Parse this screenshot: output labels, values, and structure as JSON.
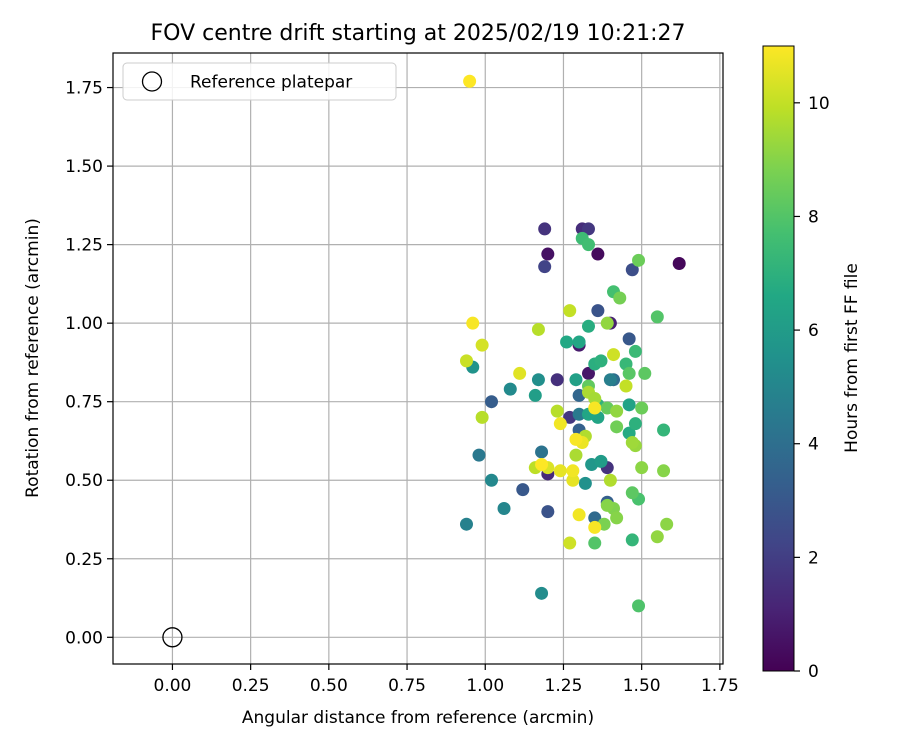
{
  "chart_data": {
    "type": "scatter",
    "title": "FOV centre drift starting at 2025/02/19 10:21:27",
    "xlabel": "Angular distance from reference (arcmin)",
    "ylabel": "Rotation from reference (arcmin)",
    "xlim": [
      -0.19,
      1.76
    ],
    "ylim": [
      -0.085,
      1.86
    ],
    "x_ticks": [
      "0.00",
      "0.25",
      "0.50",
      "0.75",
      "1.00",
      "1.25",
      "1.50",
      "1.75"
    ],
    "y_ticks": [
      "0.00",
      "0.25",
      "0.50",
      "0.75",
      "1.00",
      "1.25",
      "1.50",
      "1.75"
    ],
    "grid": true,
    "legend": {
      "placement": "top-left",
      "entries": [
        "Reference platepar"
      ]
    },
    "reference_point": {
      "x": 0.0,
      "y": 0.0,
      "marker": "hollow-circle",
      "color": "#000000"
    },
    "colorbar": {
      "label": "Hours from first FF file",
      "range": [
        0,
        11
      ],
      "ticks": [
        "0",
        "2",
        "4",
        "6",
        "8",
        "10"
      ],
      "colormap": "viridis"
    },
    "series": [
      {
        "points": [
          {
            "x": 1.62,
            "y": 1.19,
            "c": 0.2
          },
          {
            "x": 1.36,
            "y": 1.22,
            "c": 0.3
          },
          {
            "x": 1.2,
            "y": 1.22,
            "c": 0.5
          },
          {
            "x": 1.3,
            "y": 0.93,
            "c": 0.8
          },
          {
            "x": 1.33,
            "y": 0.84,
            "c": 0.7
          },
          {
            "x": 1.4,
            "y": 1.0,
            "c": 1.0
          },
          {
            "x": 1.19,
            "y": 1.3,
            "c": 1.6
          },
          {
            "x": 1.31,
            "y": 1.3,
            "c": 1.4
          },
          {
            "x": 1.33,
            "y": 1.3,
            "c": 1.8
          },
          {
            "x": 1.2,
            "y": 0.52,
            "c": 1.3
          },
          {
            "x": 1.23,
            "y": 0.82,
            "c": 1.5
          },
          {
            "x": 1.27,
            "y": 0.7,
            "c": 1.8
          },
          {
            "x": 1.39,
            "y": 0.54,
            "c": 1.6
          },
          {
            "x": 1.19,
            "y": 1.18,
            "c": 2.2
          },
          {
            "x": 1.47,
            "y": 1.17,
            "c": 2.6
          },
          {
            "x": 1.36,
            "y": 1.04,
            "c": 2.8
          },
          {
            "x": 1.46,
            "y": 0.95,
            "c": 3.0
          },
          {
            "x": 1.2,
            "y": 0.4,
            "c": 2.8
          },
          {
            "x": 1.12,
            "y": 0.47,
            "c": 3.0
          },
          {
            "x": 1.02,
            "y": 0.75,
            "c": 3.2
          },
          {
            "x": 1.39,
            "y": 0.43,
            "c": 3.3
          },
          {
            "x": 1.3,
            "y": 0.66,
            "c": 3.4
          },
          {
            "x": 1.3,
            "y": 0.77,
            "c": 3.6
          },
          {
            "x": 1.35,
            "y": 0.38,
            "c": 3.8
          },
          {
            "x": 1.41,
            "y": 0.82,
            "c": 3.9
          },
          {
            "x": 1.18,
            "y": 0.59,
            "c": 4.2
          },
          {
            "x": 0.98,
            "y": 0.58,
            "c": 4.4
          },
          {
            "x": 1.3,
            "y": 0.71,
            "c": 4.5
          },
          {
            "x": 1.4,
            "y": 0.82,
            "c": 4.7
          },
          {
            "x": 0.94,
            "y": 0.36,
            "c": 4.8
          },
          {
            "x": 1.06,
            "y": 0.41,
            "c": 5.0
          },
          {
            "x": 1.02,
            "y": 0.5,
            "c": 5.1
          },
          {
            "x": 1.08,
            "y": 0.79,
            "c": 5.2
          },
          {
            "x": 1.18,
            "y": 0.14,
            "c": 5.3
          },
          {
            "x": 1.17,
            "y": 0.82,
            "c": 5.4
          },
          {
            "x": 1.32,
            "y": 0.49,
            "c": 5.5
          },
          {
            "x": 0.96,
            "y": 0.86,
            "c": 5.6
          },
          {
            "x": 1.34,
            "y": 0.55,
            "c": 5.8
          },
          {
            "x": 1.37,
            "y": 0.56,
            "c": 6.0
          },
          {
            "x": 1.16,
            "y": 0.77,
            "c": 6.1
          },
          {
            "x": 1.29,
            "y": 0.82,
            "c": 6.2
          },
          {
            "x": 1.46,
            "y": 0.74,
            "c": 6.3
          },
          {
            "x": 1.36,
            "y": 0.7,
            "c": 6.4
          },
          {
            "x": 1.33,
            "y": 0.71,
            "c": 6.5
          },
          {
            "x": 1.26,
            "y": 0.94,
            "c": 6.6
          },
          {
            "x": 1.3,
            "y": 0.94,
            "c": 6.5
          },
          {
            "x": 1.33,
            "y": 0.99,
            "c": 6.8
          },
          {
            "x": 1.35,
            "y": 0.87,
            "c": 6.9
          },
          {
            "x": 1.37,
            "y": 0.88,
            "c": 7.0
          },
          {
            "x": 1.46,
            "y": 0.65,
            "c": 6.7
          },
          {
            "x": 1.48,
            "y": 0.68,
            "c": 7.0
          },
          {
            "x": 1.36,
            "y": 0.74,
            "c": 7.1
          },
          {
            "x": 1.47,
            "y": 0.31,
            "c": 7.2
          },
          {
            "x": 1.45,
            "y": 0.87,
            "c": 7.3
          },
          {
            "x": 1.48,
            "y": 0.91,
            "c": 7.4
          },
          {
            "x": 1.57,
            "y": 0.66,
            "c": 7.2
          },
          {
            "x": 1.31,
            "y": 1.27,
            "c": 7.5
          },
          {
            "x": 1.33,
            "y": 1.25,
            "c": 7.6
          },
          {
            "x": 1.41,
            "y": 1.1,
            "c": 7.7
          },
          {
            "x": 1.49,
            "y": 0.44,
            "c": 7.8
          },
          {
            "x": 1.49,
            "y": 0.1,
            "c": 7.9
          },
          {
            "x": 1.35,
            "y": 0.3,
            "c": 8.0
          },
          {
            "x": 1.46,
            "y": 0.84,
            "c": 8.1
          },
          {
            "x": 1.47,
            "y": 0.46,
            "c": 8.2
          },
          {
            "x": 1.33,
            "y": 0.8,
            "c": 8.3
          },
          {
            "x": 1.39,
            "y": 0.73,
            "c": 8.4
          },
          {
            "x": 1.55,
            "y": 1.02,
            "c": 8.0
          },
          {
            "x": 1.51,
            "y": 0.84,
            "c": 8.2
          },
          {
            "x": 1.49,
            "y": 1.2,
            "c": 8.5
          },
          {
            "x": 1.42,
            "y": 0.67,
            "c": 8.6
          },
          {
            "x": 1.5,
            "y": 0.73,
            "c": 8.5
          },
          {
            "x": 1.43,
            "y": 1.08,
            "c": 8.7
          },
          {
            "x": 1.38,
            "y": 0.36,
            "c": 8.8
          },
          {
            "x": 1.41,
            "y": 0.41,
            "c": 8.9
          },
          {
            "x": 1.39,
            "y": 0.42,
            "c": 9.0
          },
          {
            "x": 1.42,
            "y": 0.38,
            "c": 9.0
          },
          {
            "x": 1.57,
            "y": 0.53,
            "c": 9.0
          },
          {
            "x": 1.58,
            "y": 0.36,
            "c": 9.1
          },
          {
            "x": 1.55,
            "y": 0.32,
            "c": 9.2
          },
          {
            "x": 1.5,
            "y": 0.54,
            "c": 9.1
          },
          {
            "x": 1.48,
            "y": 0.61,
            "c": 9.3
          },
          {
            "x": 1.47,
            "y": 0.62,
            "c": 9.4
          },
          {
            "x": 1.42,
            "y": 0.72,
            "c": 9.2
          },
          {
            "x": 1.39,
            "y": 1.0,
            "c": 9.2
          },
          {
            "x": 1.33,
            "y": 0.78,
            "c": 9.6
          },
          {
            "x": 1.35,
            "y": 0.76,
            "c": 9.5
          },
          {
            "x": 1.29,
            "y": 0.58,
            "c": 9.6
          },
          {
            "x": 1.32,
            "y": 0.64,
            "c": 9.7
          },
          {
            "x": 1.23,
            "y": 0.72,
            "c": 9.8
          },
          {
            "x": 1.4,
            "y": 0.5,
            "c": 9.7
          },
          {
            "x": 1.16,
            "y": 0.54,
            "c": 9.9
          },
          {
            "x": 1.17,
            "y": 0.98,
            "c": 9.8
          },
          {
            "x": 0.99,
            "y": 0.7,
            "c": 9.8
          },
          {
            "x": 1.27,
            "y": 1.04,
            "c": 10.0
          },
          {
            "x": 1.27,
            "y": 0.3,
            "c": 10.2
          },
          {
            "x": 1.45,
            "y": 0.8,
            "c": 10.0
          },
          {
            "x": 1.41,
            "y": 0.9,
            "c": 10.2
          },
          {
            "x": 1.2,
            "y": 0.54,
            "c": 10.4
          },
          {
            "x": 0.94,
            "y": 0.88,
            "c": 10.1
          },
          {
            "x": 0.99,
            "y": 0.93,
            "c": 10.3
          },
          {
            "x": 1.11,
            "y": 0.84,
            "c": 10.5
          },
          {
            "x": 1.24,
            "y": 0.53,
            "c": 10.6
          },
          {
            "x": 1.28,
            "y": 0.5,
            "c": 10.6
          },
          {
            "x": 1.28,
            "y": 0.53,
            "c": 10.8
          },
          {
            "x": 1.3,
            "y": 0.39,
            "c": 10.8
          },
          {
            "x": 1.35,
            "y": 0.35,
            "c": 10.9
          },
          {
            "x": 1.31,
            "y": 0.62,
            "c": 10.7
          },
          {
            "x": 1.29,
            "y": 0.63,
            "c": 10.9
          },
          {
            "x": 1.35,
            "y": 0.73,
            "c": 10.9
          },
          {
            "x": 1.24,
            "y": 0.68,
            "c": 10.8
          },
          {
            "x": 1.18,
            "y": 0.55,
            "c": 11.0
          },
          {
            "x": 0.96,
            "y": 1.0,
            "c": 10.9
          },
          {
            "x": 0.95,
            "y": 1.77,
            "c": 11.0
          }
        ]
      }
    ]
  }
}
